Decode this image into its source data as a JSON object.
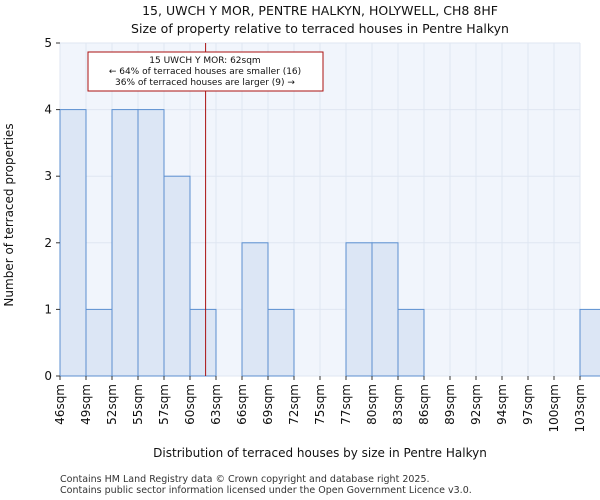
{
  "chart_data": {
    "type": "bar",
    "title": "15, UWCH Y MOR, PENTRE HALKYN, HOLYWELL, CH8 8HF",
    "subtitle": "Size of property relative to terraced houses in Pentre Halkyn",
    "xlabel": "Distribution of terraced houses by size in Pentre Halkyn",
    "ylabel": "Number of terraced properties",
    "categories": [
      "46sqm",
      "49sqm",
      "52sqm",
      "55sqm",
      "57sqm",
      "60sqm",
      "63sqm",
      "66sqm",
      "69sqm",
      "72sqm",
      "75sqm",
      "77sqm",
      "80sqm",
      "83sqm",
      "86sqm",
      "89sqm",
      "92sqm",
      "94sqm",
      "97sqm",
      "100sqm",
      "103sqm"
    ],
    "values": [
      4,
      1,
      4,
      4,
      3,
      1,
      0,
      2,
      1,
      0,
      0,
      2,
      2,
      1,
      0,
      0,
      0,
      0,
      0,
      0,
      1
    ],
    "ylim": [
      0,
      5
    ],
    "yticks": [
      0,
      1,
      2,
      3,
      4,
      5
    ],
    "marker_value_index": 5.6,
    "colors": {
      "bar_fill": "#dce6f5",
      "bar_stroke": "#5b8fd0",
      "grid": "#dfe6f2",
      "plot_bg": "#f1f5fc",
      "marker": "#aa1111"
    },
    "annotation": {
      "line1": "15 UWCH Y MOR: 62sqm",
      "line2": "← 64% of terraced houses are smaller (16)",
      "line3": "36% of terraced houses are larger (9) →"
    }
  },
  "footer": {
    "line1": "Contains HM Land Registry data © Crown copyright and database right 2025.",
    "line2": "Contains public sector information licensed under the Open Government Licence v3.0."
  }
}
